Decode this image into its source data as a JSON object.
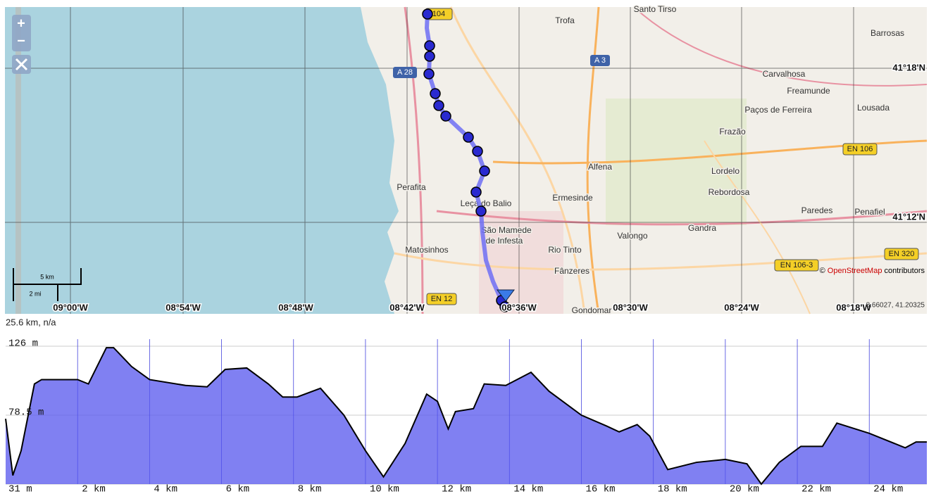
{
  "map": {
    "places": [
      "Santo Tirso",
      "Trofa",
      "Barrosas",
      "Carvalhosa",
      "Freamunde",
      "Paços de Ferreira",
      "Lousada",
      "Frazão",
      "Alfena",
      "Lordelo",
      "Rebordosa",
      "Perafita",
      "Leça do Balio",
      "Ermesinde",
      "São Mamede",
      "de Infesta",
      "Paredes",
      "Penafiel",
      "Gandra",
      "Valongo",
      "Matosinhos",
      "Rio Tinto",
      "Fânzeres",
      "Gondomar"
    ],
    "roads": [
      "104",
      "A 28",
      "A 3",
      "EN 106",
      "EN 320",
      "EN 106-3",
      "EN 12"
    ],
    "lon_labels": [
      "09°00'W",
      "08°54'W",
      "08°48'W",
      "08°42'W",
      "08°36'W",
      "08°30'W",
      "08°24'W",
      "08°18'W"
    ],
    "lat_labels": [
      "41°18'N",
      "41°12'N"
    ],
    "scale": {
      "km": "5 km",
      "mi": "2 mi"
    },
    "attribution": {
      "symbol": "©",
      "link": "OpenStreetMap",
      "text": "contributors"
    },
    "cursor_coords": "8.66027, 41.20325",
    "controls": {
      "zoom_in": "+",
      "zoom_out": "−"
    }
  },
  "summary": "25.6 km, n/a",
  "chart_data": {
    "type": "area",
    "x": [
      0,
      0.2,
      0.43,
      0.8,
      1.0,
      2.0,
      2.3,
      2.8,
      3.0,
      3.5,
      4.0,
      5.0,
      5.6,
      6.1,
      6.7,
      7.3,
      7.7,
      8.1,
      8.75,
      9.4,
      10.0,
      10.5,
      11.1,
      11.7,
      12.0,
      12.3,
      12.5,
      13.0,
      13.3,
      13.9,
      14.6,
      15.1,
      16.0,
      16.7,
      17.05,
      17.55,
      17.9,
      18.4,
      19.2,
      20.0,
      20.6,
      21.0,
      21.5,
      22.1,
      22.7,
      23.1,
      24.0,
      25.0,
      25.3,
      25.6
    ],
    "values": [
      76,
      37,
      54,
      100,
      103,
      103,
      100,
      125,
      125,
      112,
      103,
      99,
      98,
      110,
      111,
      100,
      91,
      91,
      97,
      78.5,
      54,
      36,
      59,
      93,
      88,
      69,
      81,
      83,
      100,
      99,
      108,
      95,
      78.5,
      71,
      67,
      72,
      64,
      41,
      46,
      48,
      45,
      31,
      46,
      57,
      57,
      73,
      66,
      56,
      60,
      60
    ],
    "color": "#5555ee",
    "xlim": [
      0,
      25.6
    ],
    "ylim": [
      31,
      126
    ],
    "xticks": [
      {
        "value": 2,
        "label": "2 km"
      },
      {
        "value": 4,
        "label": "4 km"
      },
      {
        "value": 6,
        "label": "6 km"
      },
      {
        "value": 8,
        "label": "8 km"
      },
      {
        "value": 10,
        "label": "10 km"
      },
      {
        "value": 12,
        "label": "12 km"
      },
      {
        "value": 14,
        "label": "14 km"
      },
      {
        "value": 16,
        "label": "16 km"
      },
      {
        "value": 18,
        "label": "18 km"
      },
      {
        "value": 20,
        "label": "20 km"
      },
      {
        "value": 22,
        "label": "22 km"
      },
      {
        "value": 24,
        "label": "24 km"
      }
    ],
    "yticks": [
      {
        "value": 31,
        "label": "31 m"
      },
      {
        "value": 78.5,
        "label": "78.5 m"
      },
      {
        "value": 126,
        "label": "126 m"
      }
    ],
    "grid": true
  }
}
